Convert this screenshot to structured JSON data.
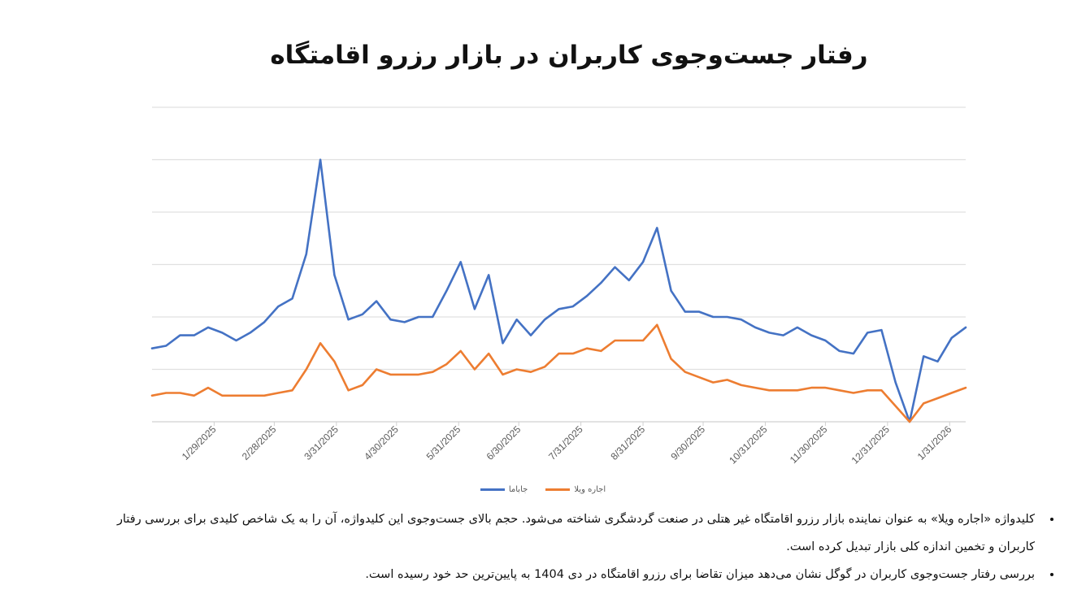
{
  "title": "رفتار جست‌وجوی کاربران در بازار رزرو اقامتگاه",
  "chart_data": {
    "type": "line",
    "title": "",
    "xlabel": "",
    "ylabel": "",
    "x_start": "2024-12-29",
    "x_interval": "weekly",
    "ylim": [
      0,
      120
    ],
    "y_gridlines": [
      0,
      20,
      40,
      60,
      80,
      100,
      120
    ],
    "y_tick_labels_shown": false,
    "grid": true,
    "legend_position": "bottom",
    "x_tick_labels": [
      "1/29/2025",
      "2/28/2025",
      "3/31/2025",
      "4/30/2025",
      "5/31/2025",
      "6/30/2025",
      "7/31/2025",
      "8/31/2025",
      "9/30/2025",
      "10/31/2025",
      "11/30/2025",
      "12/31/2025",
      "1/31/2026"
    ],
    "series": [
      {
        "name": "جاباما",
        "color": "#4472C4",
        "values": [
          28,
          29,
          33,
          33,
          36,
          34,
          31,
          34,
          38,
          44,
          47,
          64,
          100,
          56,
          39,
          41,
          46,
          39,
          38,
          40,
          40,
          50,
          61,
          43,
          56,
          30,
          39,
          33,
          39,
          43,
          44,
          48,
          53,
          59,
          54,
          61,
          74,
          50,
          42,
          42,
          40,
          40,
          39,
          36,
          34,
          33,
          36,
          33,
          31,
          27,
          26,
          34,
          35,
          15,
          0,
          25,
          23,
          32,
          36
        ]
      },
      {
        "name": "اجاره ویلا",
        "color": "#ED7D31",
        "values": [
          10,
          11,
          11,
          10,
          13,
          10,
          10,
          10,
          10,
          11,
          12,
          20,
          30,
          23,
          12,
          14,
          20,
          18,
          18,
          18,
          19,
          22,
          27,
          20,
          26,
          18,
          20,
          19,
          21,
          26,
          26,
          28,
          27,
          31,
          31,
          31,
          37,
          24,
          19,
          17,
          15,
          16,
          14,
          13,
          12,
          12,
          12,
          13,
          13,
          12,
          11,
          12,
          12,
          6,
          0,
          7,
          9,
          11,
          13
        ]
      }
    ]
  },
  "notes": [
    "کلیدواژه «اجاره ویلا» به عنوان نماینده بازار رزرو اقامتگاه غیر هتلی در صنعت گردشگری شناخته می‌شود. حجم بالای جست‌وجوی این کلیدواژه، آن را به یک شاخص کلیدی برای بررسی رفتار کاربران و تخمین اندازه کلی بازار تبدیل کرده است.",
    "بررسی رفتار جست‌وجوی کاربران در گوگل نشان می‌دهد میزان تقاضا برای رزرو اقامتگاه در دی 1404 به پایین‌ترین حد خود رسیده است."
  ]
}
